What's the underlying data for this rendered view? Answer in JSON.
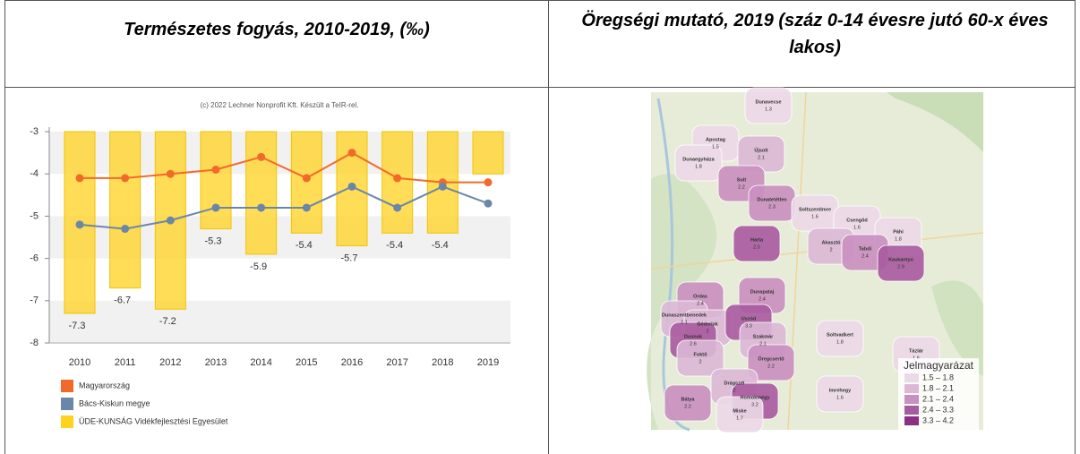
{
  "header": {
    "left_title": "Természetes fogyás, 2010-2019, (‰)",
    "right_title": "Öregségi mutató, 2019 (száz 0-14 évesre jutó 60-x éves lakos)"
  },
  "chart": {
    "type": "bar-line",
    "credit": "(c) 2022 Lechner Nonprofit Kft. Készült a TeIR-rel.",
    "categories": [
      "2010",
      "2011",
      "2012",
      "2013",
      "2014",
      "2015",
      "2016",
      "2017",
      "2018",
      "2019"
    ],
    "series": [
      {
        "name": "Magyarország",
        "type": "line",
        "color": "#f26a2a",
        "values": [
          -4.1,
          -4.1,
          -4.0,
          -3.9,
          -3.6,
          -4.1,
          -3.5,
          -4.1,
          -4.2,
          -4.2
        ]
      },
      {
        "name": "Bács-Kiskun megye",
        "type": "line",
        "color": "#6b87a8",
        "values": [
          -5.2,
          -5.3,
          -5.1,
          -4.8,
          -4.8,
          -4.8,
          -4.3,
          -4.8,
          -4.3,
          -4.7
        ]
      },
      {
        "name": "ÜDE-KUNSÁG Vidékfejlesztési Egyesület",
        "type": "bar",
        "color": "#ffd21f",
        "values": [
          -7.3,
          -6.7,
          -7.2,
          -5.3,
          -5.9,
          -5.4,
          -5.7,
          -5.4,
          -5.4,
          -4.0
        ],
        "value_labels": [
          "-7.3",
          "-6.7",
          "-7.2",
          "-5.3",
          "-5.9",
          "-5.4",
          "-5.7",
          "-5.4",
          "-5.4",
          null
        ]
      }
    ],
    "ylim": [
      -8,
      -3
    ],
    "yticks": [
      -8,
      -7,
      -6,
      -5,
      -4,
      -3
    ],
    "grid": "bands"
  },
  "map": {
    "legend_title": "Jelmagyarázat",
    "legend": [
      {
        "label": "1.5 – 1.8",
        "color": "#ecd9e8"
      },
      {
        "label": "1.8 – 2.1",
        "color": "#dcb8d6"
      },
      {
        "label": "2.1 – 2.4",
        "color": "#c98fc0"
      },
      {
        "label": "2.4 – 3.3",
        "color": "#a85aa0"
      },
      {
        "label": "3.3 – 4.2",
        "color": "#8a2f84"
      }
    ],
    "places": [
      {
        "name": "Dunavecse",
        "value": 1.3
      },
      {
        "name": "Apostag",
        "value": 1.5
      },
      {
        "name": "Dunaegyháza",
        "value": 1.8
      },
      {
        "name": "Újsolt",
        "value": 2.1
      },
      {
        "name": "Solt",
        "value": 2.2
      },
      {
        "name": "Dunatetétlen",
        "value": 2.3
      },
      {
        "name": "Soltszentimre",
        "value": 1.6
      },
      {
        "name": "Csengőd",
        "value": 1.6
      },
      {
        "name": "Páhi",
        "value": 1.8
      },
      {
        "name": "Akasztó",
        "value": 2
      },
      {
        "name": "Tabdi",
        "value": 2.4
      },
      {
        "name": "Kaskantyú",
        "value": 2.9
      },
      {
        "name": "Harta",
        "value": 2.5
      },
      {
        "name": "Dunapataj",
        "value": 2.4
      },
      {
        "name": "Ordas",
        "value": 2.4
      },
      {
        "name": "Dunaszentbenedek",
        "value": 2.1
      },
      {
        "name": "Géderlak",
        "value": 2
      },
      {
        "name": "Uszód",
        "value": 3.3
      },
      {
        "name": "Szakmár",
        "value": 2.1
      },
      {
        "name": "Dusnok",
        "value": 2.6
      },
      {
        "name": "Öregcsertő",
        "value": 2.2
      },
      {
        "name": "Foktő",
        "value": 2
      },
      {
        "name": "Soltvadkert",
        "value": 1.8
      },
      {
        "name": "Tázlár",
        "value": 1.6
      },
      {
        "name": "Bátya",
        "value": 2.2
      },
      {
        "name": "Drágszél",
        "value": 2
      },
      {
        "name": "Homokmégy",
        "value": 3.2
      },
      {
        "name": "Miske",
        "value": 1.7
      },
      {
        "name": "Imrehegy",
        "value": 1.6
      }
    ]
  }
}
